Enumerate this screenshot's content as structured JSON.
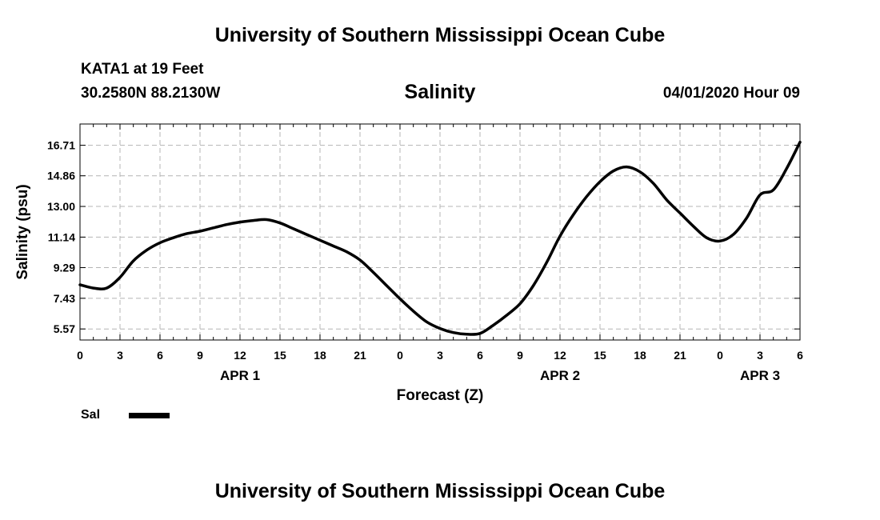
{
  "header": {
    "title": "University of Southern Mississippi Ocean Cube",
    "footer": "University of Southern Mississippi Ocean Cube",
    "station": "KATA1 at 19 Feet",
    "coords": "30.2580N 88.2130W",
    "timestamp": "04/01/2020 Hour 09"
  },
  "chart_data": {
    "type": "line",
    "title": "Salinity",
    "xlabel": "Forecast (Z)",
    "ylabel": "Salinity (psu)",
    "xlim": [
      0,
      54
    ],
    "ylim": [
      4.9,
      18.0
    ],
    "grid": true,
    "legend": "bottom-left",
    "x_ticks": [
      {
        "x": 0,
        "label": "0"
      },
      {
        "x": 3,
        "label": "3"
      },
      {
        "x": 6,
        "label": "6"
      },
      {
        "x": 9,
        "label": "9"
      },
      {
        "x": 12,
        "label": "12"
      },
      {
        "x": 15,
        "label": "15"
      },
      {
        "x": 18,
        "label": "18"
      },
      {
        "x": 21,
        "label": "21"
      },
      {
        "x": 24,
        "label": "0"
      },
      {
        "x": 27,
        "label": "3"
      },
      {
        "x": 30,
        "label": "6"
      },
      {
        "x": 33,
        "label": "9"
      },
      {
        "x": 36,
        "label": "12"
      },
      {
        "x": 39,
        "label": "15"
      },
      {
        "x": 42,
        "label": "18"
      },
      {
        "x": 45,
        "label": "21"
      },
      {
        "x": 48,
        "label": "0"
      },
      {
        "x": 51,
        "label": "3"
      },
      {
        "x": 54,
        "label": "6"
      }
    ],
    "day_labels": [
      {
        "x": 12,
        "label": "APR 1"
      },
      {
        "x": 36,
        "label": "APR 2"
      },
      {
        "x": 51,
        "label": "APR 3"
      }
    ],
    "y_ticks": [
      5.57,
      7.43,
      9.29,
      11.14,
      13.0,
      14.86,
      16.71
    ],
    "series": [
      {
        "name": "Sal",
        "color": "#000000",
        "x": [
          0,
          1,
          2,
          3,
          4,
          5,
          6,
          7,
          8,
          9,
          10,
          11,
          12,
          13,
          14,
          15,
          16,
          17,
          18,
          19,
          20,
          21,
          22,
          23,
          24,
          25,
          26,
          27,
          28,
          29,
          30,
          31,
          32,
          33,
          34,
          35,
          36,
          37,
          38,
          39,
          40,
          41,
          42,
          43,
          44,
          45,
          46,
          47,
          48,
          49,
          50,
          51,
          52,
          53,
          54
        ],
        "y": [
          8.25,
          8.05,
          8.05,
          8.7,
          9.7,
          10.35,
          10.8,
          11.1,
          11.35,
          11.5,
          11.7,
          11.9,
          12.05,
          12.15,
          12.2,
          12.0,
          11.65,
          11.3,
          10.95,
          10.6,
          10.25,
          9.75,
          9.0,
          8.2,
          7.4,
          6.65,
          6.0,
          5.6,
          5.35,
          5.25,
          5.3,
          5.8,
          6.4,
          7.1,
          8.2,
          9.6,
          11.2,
          12.5,
          13.6,
          14.5,
          15.15,
          15.4,
          15.1,
          14.4,
          13.4,
          12.6,
          11.8,
          11.1,
          10.9,
          11.3,
          12.3,
          13.7,
          14.0,
          15.3,
          16.9
        ]
      }
    ]
  }
}
